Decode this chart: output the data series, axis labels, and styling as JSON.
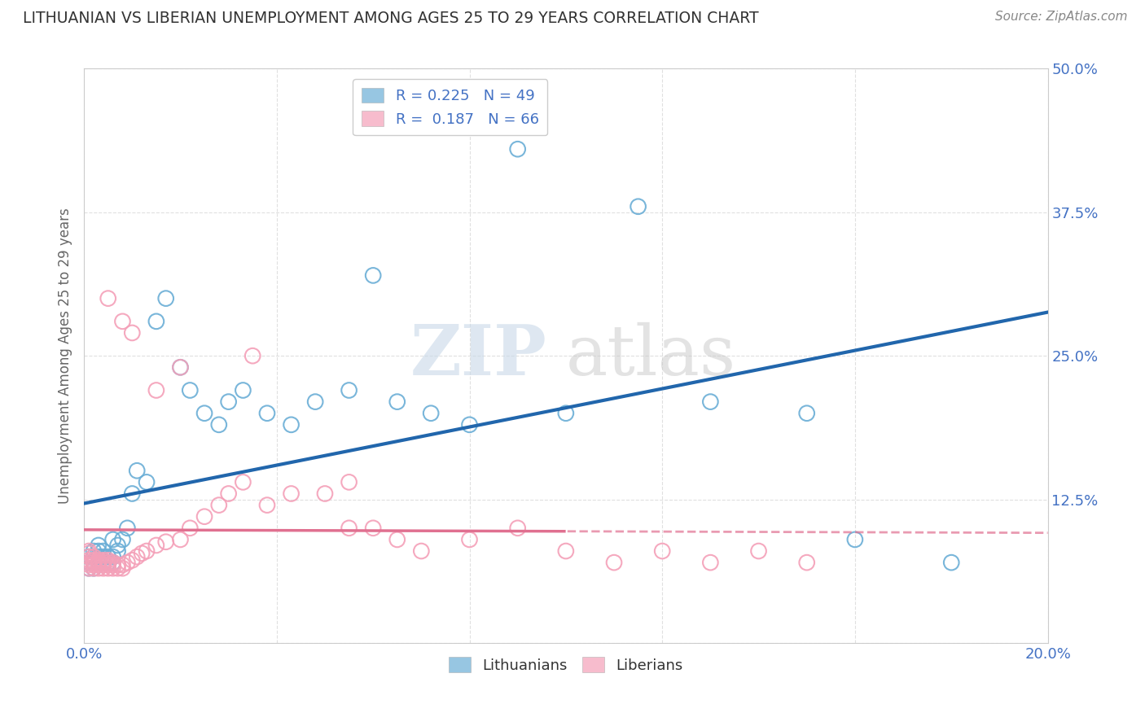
{
  "title": "LITHUANIAN VS LIBERIAN UNEMPLOYMENT AMONG AGES 25 TO 29 YEARS CORRELATION CHART",
  "source_text": "Source: ZipAtlas.com",
  "ylabel": "Unemployment Among Ages 25 to 29 years",
  "xlim": [
    0.0,
    0.2
  ],
  "ylim": [
    0.0,
    0.5
  ],
  "xticks": [
    0.0,
    0.04,
    0.08,
    0.12,
    0.16,
    0.2
  ],
  "xticklabels": [
    "0.0%",
    "",
    "",
    "",
    "",
    "20.0%"
  ],
  "yticks": [
    0.0,
    0.125,
    0.25,
    0.375,
    0.5
  ],
  "yticklabels": [
    "",
    "12.5%",
    "25.0%",
    "37.5%",
    "50.0%"
  ],
  "lit_R": 0.225,
  "lit_N": 49,
  "lib_R": 0.187,
  "lib_N": 66,
  "lit_color": "#6baed6",
  "lib_color": "#f4a0b8",
  "lit_line_color": "#2166ac",
  "lib_line_color": "#e07090",
  "background_color": "#ffffff",
  "grid_color": "#cccccc",
  "title_color": "#333333",
  "axis_label_color": "#666666",
  "tick_color": "#4472c4",
  "watermark_zip": "ZIP",
  "watermark_atlas": "atlas",
  "lit_x": [
    0.001,
    0.001,
    0.001,
    0.002,
    0.002,
    0.002,
    0.002,
    0.003,
    0.003,
    0.003,
    0.003,
    0.004,
    0.004,
    0.004,
    0.005,
    0.005,
    0.006,
    0.006,
    0.006,
    0.007,
    0.007,
    0.008,
    0.009,
    0.01,
    0.011,
    0.013,
    0.015,
    0.017,
    0.02,
    0.022,
    0.025,
    0.028,
    0.03,
    0.033,
    0.038,
    0.043,
    0.048,
    0.055,
    0.06,
    0.065,
    0.072,
    0.08,
    0.09,
    0.1,
    0.115,
    0.13,
    0.15,
    0.16,
    0.18
  ],
  "lit_y": [
    0.065,
    0.07,
    0.075,
    0.065,
    0.07,
    0.075,
    0.08,
    0.07,
    0.075,
    0.08,
    0.085,
    0.07,
    0.075,
    0.08,
    0.07,
    0.075,
    0.07,
    0.075,
    0.09,
    0.08,
    0.085,
    0.09,
    0.1,
    0.13,
    0.15,
    0.14,
    0.28,
    0.3,
    0.24,
    0.22,
    0.2,
    0.19,
    0.21,
    0.22,
    0.2,
    0.19,
    0.21,
    0.22,
    0.32,
    0.21,
    0.2,
    0.19,
    0.43,
    0.2,
    0.38,
    0.21,
    0.2,
    0.09,
    0.07
  ],
  "lib_x": [
    0.001,
    0.001,
    0.001,
    0.001,
    0.001,
    0.001,
    0.001,
    0.002,
    0.002,
    0.002,
    0.002,
    0.002,
    0.003,
    0.003,
    0.003,
    0.003,
    0.004,
    0.004,
    0.004,
    0.004,
    0.005,
    0.005,
    0.005,
    0.005,
    0.006,
    0.006,
    0.006,
    0.007,
    0.007,
    0.008,
    0.008,
    0.009,
    0.01,
    0.011,
    0.012,
    0.013,
    0.015,
    0.017,
    0.02,
    0.022,
    0.025,
    0.028,
    0.03,
    0.033,
    0.038,
    0.043,
    0.05,
    0.055,
    0.06,
    0.065,
    0.07,
    0.08,
    0.09,
    0.1,
    0.11,
    0.12,
    0.13,
    0.14,
    0.15,
    0.005,
    0.008,
    0.01,
    0.015,
    0.02,
    0.035,
    0.055
  ],
  "lib_y": [
    0.065,
    0.068,
    0.07,
    0.072,
    0.075,
    0.078,
    0.08,
    0.065,
    0.068,
    0.07,
    0.072,
    0.075,
    0.065,
    0.068,
    0.07,
    0.072,
    0.065,
    0.068,
    0.07,
    0.072,
    0.065,
    0.068,
    0.07,
    0.072,
    0.065,
    0.068,
    0.07,
    0.065,
    0.068,
    0.065,
    0.068,
    0.07,
    0.072,
    0.075,
    0.078,
    0.08,
    0.085,
    0.088,
    0.09,
    0.1,
    0.11,
    0.12,
    0.13,
    0.14,
    0.12,
    0.13,
    0.13,
    0.14,
    0.1,
    0.09,
    0.08,
    0.09,
    0.1,
    0.08,
    0.07,
    0.08,
    0.07,
    0.08,
    0.07,
    0.3,
    0.28,
    0.27,
    0.22,
    0.24,
    0.25,
    0.1
  ]
}
